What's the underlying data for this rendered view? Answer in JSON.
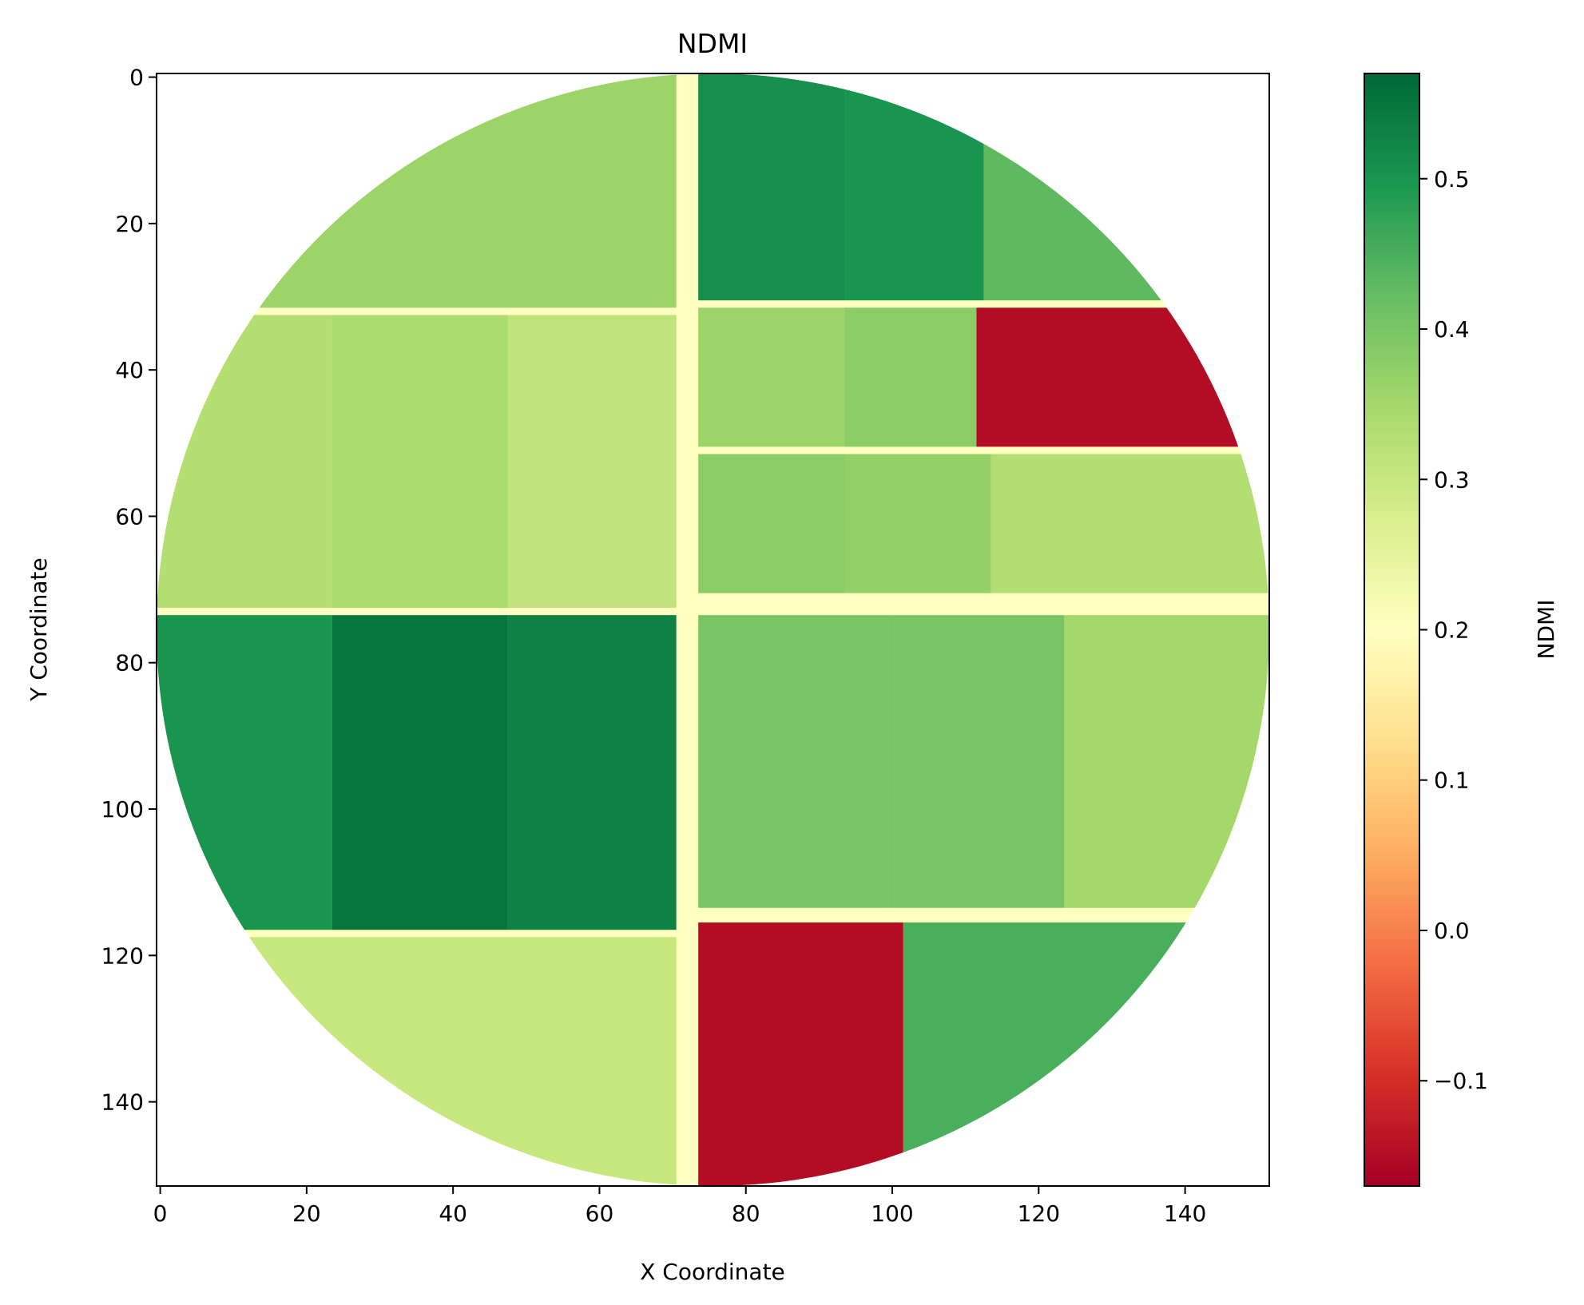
{
  "chart_data": {
    "type": "heatmap",
    "title": "NDMI",
    "xlabel": "X Coordinate",
    "ylabel": "Y Coordinate",
    "colorbar_label": "NDMI",
    "colormap": "RdYlGn",
    "grid": false,
    "xlim": [
      -0.5,
      151.5
    ],
    "ylim": [
      151.5,
      -0.5
    ],
    "x_ticks": [
      0,
      20,
      40,
      60,
      80,
      100,
      120,
      140
    ],
    "y_ticks": [
      0,
      20,
      40,
      60,
      80,
      100,
      120,
      140
    ],
    "x_tick_labels": [
      "0",
      "20",
      "40",
      "60",
      "80",
      "100",
      "120",
      "140"
    ],
    "y_tick_labels": [
      "0",
      "20",
      "40",
      "60",
      "80",
      "100",
      "120",
      "140"
    ],
    "colorbar_range": [
      -0.17,
      0.57
    ],
    "colorbar_ticks": [
      -0.1,
      0.0,
      0.1,
      0.2,
      0.3,
      0.4,
      0.5
    ],
    "colorbar_tick_labels": [
      "−0.1",
      "0.0",
      "0.1",
      "0.2",
      "0.3",
      "0.4",
      "0.5"
    ],
    "mask": {
      "shape": "circle",
      "center": [
        75.5,
        75.5
      ],
      "radius": 76
    },
    "fields": [
      {
        "x": [
          0,
          71
        ],
        "y": [
          0,
          32
        ],
        "ndmi": 0.36
      },
      {
        "x": [
          0,
          24
        ],
        "y": [
          33,
          73
        ],
        "ndmi": 0.33
      },
      {
        "x": [
          24,
          48
        ],
        "y": [
          33,
          73
        ],
        "ndmi": 0.34
      },
      {
        "x": [
          48,
          71
        ],
        "y": [
          33,
          73
        ],
        "ndmi": 0.31
      },
      {
        "x": [
          74,
          94
        ],
        "y": [
          0,
          31
        ],
        "ndmi": 0.51
      },
      {
        "x": [
          94,
          113
        ],
        "y": [
          0,
          31
        ],
        "ndmi": 0.5
      },
      {
        "x": [
          113,
          152
        ],
        "y": [
          0,
          31
        ],
        "ndmi": 0.43
      },
      {
        "x": [
          74,
          94
        ],
        "y": [
          32,
          51
        ],
        "ndmi": 0.36
      },
      {
        "x": [
          94,
          112
        ],
        "y": [
          32,
          51
        ],
        "ndmi": 0.38
      },
      {
        "x": [
          112,
          152
        ],
        "y": [
          32,
          51
        ],
        "ndmi": -0.15
      },
      {
        "x": [
          74,
          94
        ],
        "y": [
          52,
          71
        ],
        "ndmi": 0.38
      },
      {
        "x": [
          94,
          114
        ],
        "y": [
          52,
          71
        ],
        "ndmi": 0.37
      },
      {
        "x": [
          114,
          152
        ],
        "y": [
          52,
          71
        ],
        "ndmi": 0.33
      },
      {
        "x": [
          0,
          24
        ],
        "y": [
          74,
          117
        ],
        "ndmi": 0.5
      },
      {
        "x": [
          24,
          48
        ],
        "y": [
          74,
          117
        ],
        "ndmi": 0.55
      },
      {
        "x": [
          48,
          71
        ],
        "y": [
          74,
          117
        ],
        "ndmi": 0.53
      },
      {
        "x": [
          74,
          100
        ],
        "y": [
          74,
          114
        ],
        "ndmi": 0.4
      },
      {
        "x": [
          100,
          124
        ],
        "y": [
          74,
          114
        ],
        "ndmi": 0.4
      },
      {
        "x": [
          124,
          152
        ],
        "y": [
          74,
          114
        ],
        "ndmi": 0.35
      },
      {
        "x": [
          0,
          71
        ],
        "y": [
          118,
          152
        ],
        "ndmi": 0.3
      },
      {
        "x": [
          74,
          102
        ],
        "y": [
          116,
          152
        ],
        "ndmi": -0.15
      },
      {
        "x": [
          102,
          152
        ],
        "y": [
          116,
          152
        ],
        "ndmi": 0.45
      }
    ]
  }
}
